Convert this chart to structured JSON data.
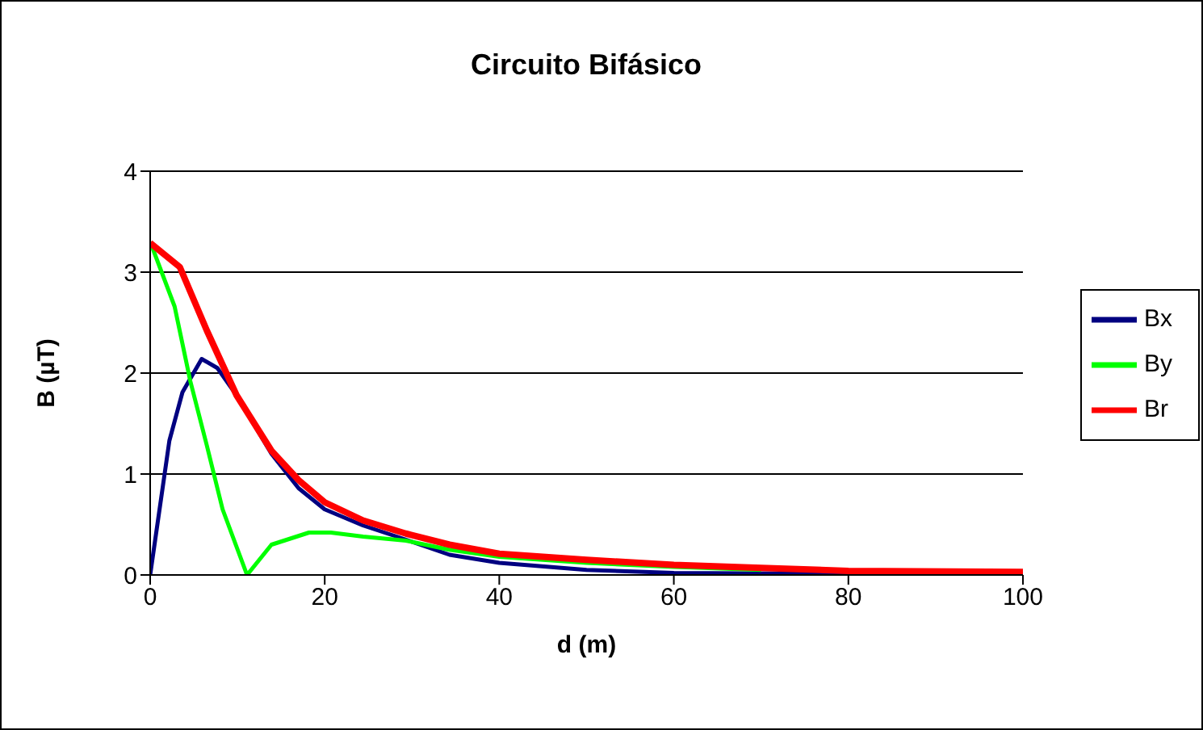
{
  "chart_data": {
    "type": "line",
    "title": "Circuito Bifásico",
    "xlabel": "d (m)",
    "ylabel": "B (µT)",
    "xlim": [
      0,
      100
    ],
    "xticks": [
      0,
      20,
      40,
      60,
      80,
      100
    ],
    "ylim": [
      0,
      4
    ],
    "yticks": [
      0,
      1,
      2,
      3,
      4
    ],
    "grid": "y",
    "legend": "right",
    "marker": "none",
    "line_style": "solid",
    "series": [
      {
        "name": "Bx",
        "color": "#000080",
        "x": [
          0,
          2.2,
          3.7,
          5.9,
          7.7,
          9.9,
          13.9,
          17,
          20,
          24.4,
          29.3,
          34.3,
          40,
          50,
          60,
          80,
          100
        ],
        "values": [
          0,
          1.33,
          1.81,
          2.14,
          2.05,
          1.78,
          1.2,
          0.86,
          0.65,
          0.49,
          0.35,
          0.2,
          0.12,
          0.05,
          0.02,
          0.01,
          0.01
        ]
      },
      {
        "name": "By",
        "color": "#00ff00",
        "x": [
          0,
          2.8,
          4.6,
          6.5,
          8.3,
          11.1,
          13.9,
          18.2,
          20.7,
          24.4,
          29.3,
          34.3,
          40,
          50,
          60,
          70
        ],
        "values": [
          3.3,
          2.66,
          1.92,
          1.28,
          0.65,
          0,
          0.3,
          0.42,
          0.42,
          0.38,
          0.34,
          0.25,
          0.18,
          0.12,
          0.08,
          0.05
        ]
      },
      {
        "name": "Br",
        "color": "#ff0000",
        "x": [
          0,
          3.4,
          6.5,
          9.9,
          13.9,
          17,
          20,
          24.4,
          29.3,
          34.3,
          40,
          50,
          60,
          70,
          80,
          100
        ],
        "values": [
          3.29,
          3.05,
          2.42,
          1.78,
          1.23,
          0.94,
          0.72,
          0.54,
          0.41,
          0.3,
          0.21,
          0.15,
          0.1,
          0.07,
          0.04,
          0.03
        ]
      }
    ]
  }
}
